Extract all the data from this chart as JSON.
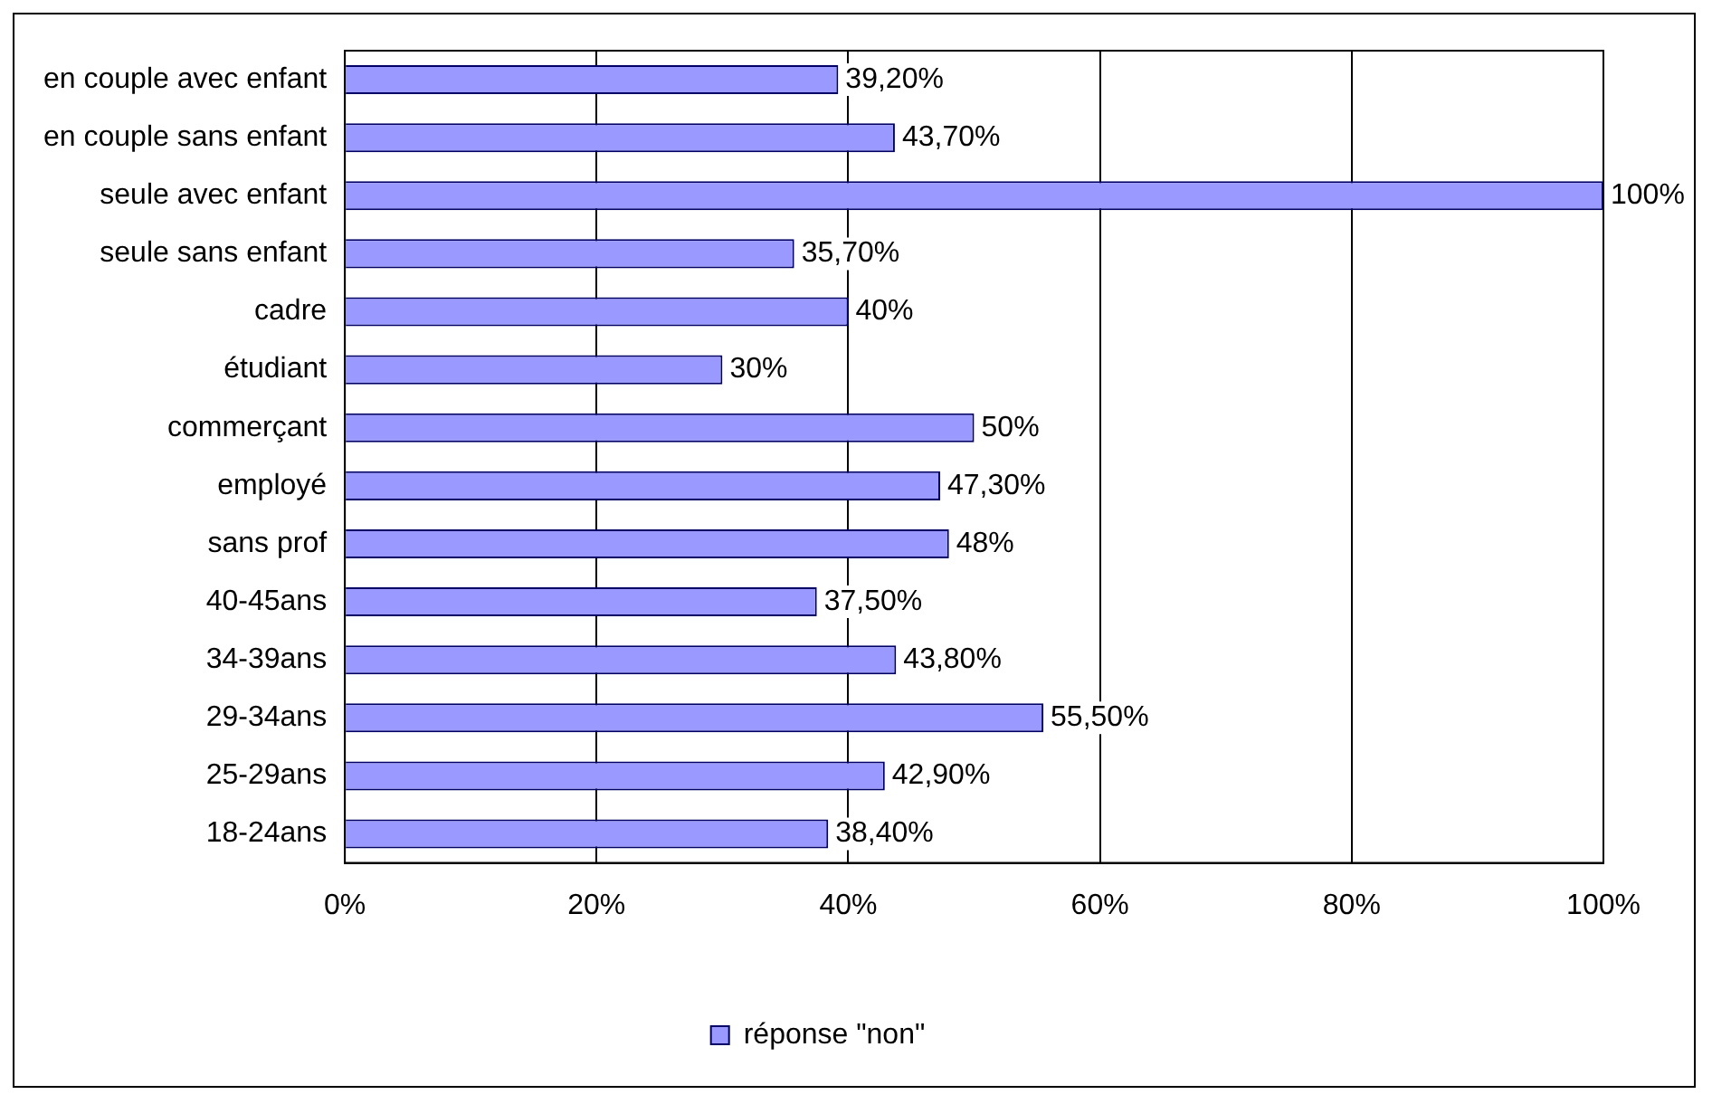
{
  "chart_data": {
    "type": "bar",
    "orientation": "horizontal",
    "categories": [
      "en couple avec enfant",
      "en couple sans enfant",
      "seule avec enfant",
      "seule sans enfant",
      "cadre",
      "étudiant",
      "commerçant",
      "employé",
      "sans prof",
      "40-45ans",
      "34-39ans",
      "29-34ans",
      "25-29ans",
      "18-24ans"
    ],
    "series": [
      {
        "name": "réponse \"non\"",
        "color": "#9999ff",
        "values": [
          39.2,
          43.7,
          100,
          35.7,
          40,
          30,
          50,
          47.3,
          48,
          37.5,
          43.8,
          55.5,
          42.9,
          38.4
        ],
        "value_labels": [
          "39,20%",
          "43,70%",
          "100%",
          "35,70%",
          "40%",
          "30%",
          "50%",
          "47,30%",
          "48%",
          "37,50%",
          "43,80%",
          "55,50%",
          "42,90%",
          "38,40%"
        ]
      }
    ],
    "xlim": [
      0,
      100
    ],
    "xticks": [
      {
        "value": 0,
        "label": "0%"
      },
      {
        "value": 20,
        "label": "20%"
      },
      {
        "value": 40,
        "label": "40%"
      },
      {
        "value": 60,
        "label": "60%"
      },
      {
        "value": 80,
        "label": "80%"
      },
      {
        "value": 100,
        "label": "100%"
      }
    ],
    "grid": "x",
    "legend": "bottom"
  }
}
